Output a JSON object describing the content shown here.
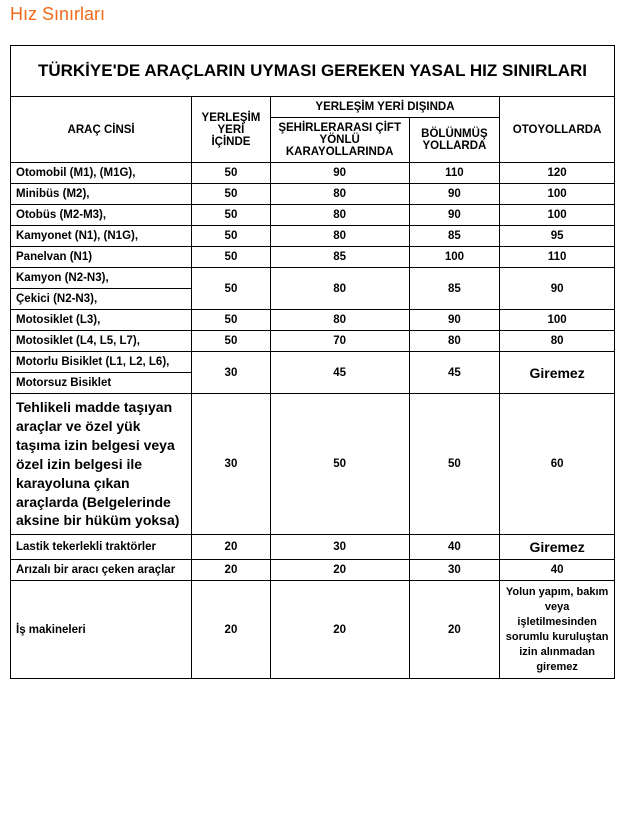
{
  "heading": "Hız Sınırları",
  "title": "TÜRKİYE'DE ARAÇLARIN UYMASI GEREKEN YASAL HIZ SINIRLARI",
  "headers": {
    "vehicle": "ARAÇ CİNSİ",
    "inside": "YERLEŞİM YERİ İÇİNDE",
    "outside_group": "YERLEŞİM YERİ DIŞINDA",
    "intercity": "ŞEHİRLERARASI ÇİFT YÖNLÜ KARAYOLLARINDA",
    "divided": "BÖLÜNMÜŞ YOLLARDA",
    "highway": "OTOYOLLARDA"
  },
  "rows": {
    "r1": {
      "label": "Otomobil (M1), (M1G),",
      "v1": "50",
      "v2": "90",
      "v3": "110",
      "v4": "120"
    },
    "r2": {
      "label": "Minibüs (M2),",
      "v1": "50",
      "v2": "80",
      "v3": "90",
      "v4": "100"
    },
    "r3": {
      "label": "Otobüs (M2-M3),",
      "v1": "50",
      "v2": "80",
      "v3": "90",
      "v4": "100"
    },
    "r4": {
      "label": "Kamyonet (N1), (N1G),",
      "v1": "50",
      "v2": "80",
      "v3": "85",
      "v4": "95"
    },
    "r5": {
      "label": "Panelvan (N1)",
      "v1": "50",
      "v2": "85",
      "v3": "100",
      "v4": "110"
    },
    "r6a": {
      "label": "Kamyon (N2-N3),"
    },
    "r6b": {
      "label": "Çekici (N2-N3),",
      "v1": "50",
      "v2": "80",
      "v3": "85",
      "v4": "90"
    },
    "r7": {
      "label": "Motosiklet (L3),",
      "v1": "50",
      "v2": "80",
      "v3": "90",
      "v4": "100"
    },
    "r8": {
      "label": "Motosiklet (L4, L5, L7),",
      "v1": "50",
      "v2": "70",
      "v3": "80",
      "v4": "80"
    },
    "r9a": {
      "label": "Motorlu Bisiklet (L1, L2, L6),"
    },
    "r9b": {
      "label": "Motorsuz Bisiklet",
      "v1": "30",
      "v2": "45",
      "v3": "45",
      "v4": "Giremez"
    },
    "r10": {
      "label": "Tehlikeli madde taşıyan\n araçlar ve özel yük taşıma izin belgesi veya özel izin belgesi\n ile karayoluna çıkan\n araçlarda\n(Belgelerinde\n aksine bir hüküm yoksa)",
      "v1": "30",
      "v2": "50",
      "v3": "50",
      "v4": "60"
    },
    "r11": {
      "label": "Lastik tekerlekli traktörler",
      "v1": "20",
      "v2": "30",
      "v3": "40",
      "v4": "Giremez"
    },
    "r12": {
      "label": "Arızalı bir aracı çeken araçlar",
      "v1": "20",
      "v2": "20",
      "v3": "30",
      "v4": "40"
    },
    "r13": {
      "label": "İş makineleri",
      "v1": "20",
      "v2": "20",
      "v3": "20",
      "v4": "Yolun yapım, bakım veya işletilmesinden sorumlu kuruluştan izin alınmadan giremez"
    }
  }
}
